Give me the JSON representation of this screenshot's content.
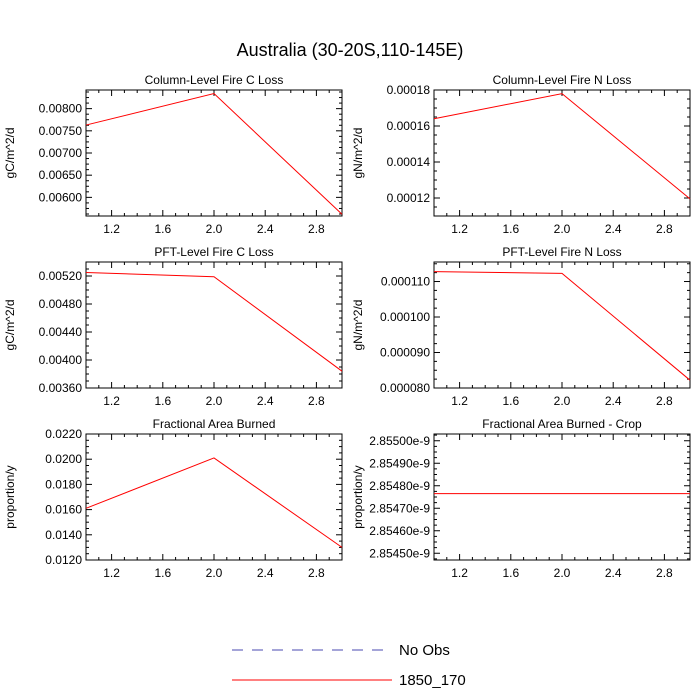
{
  "title": "Australia (30-20S,110-145E)",
  "colors": {
    "series": "#ff0000",
    "obs": "#4a4ab0",
    "axis": "#000000"
  },
  "legend": {
    "placement": "bottom-center",
    "items": [
      {
        "label": "No Obs",
        "style": "dashed",
        "color": "#4a4ab0"
      },
      {
        "label": "1850_170",
        "style": "solid",
        "color": "#ff0000"
      }
    ]
  },
  "chart_data": [
    {
      "type": "line",
      "title": "Column-Level Fire C Loss",
      "ylabel": "gC/m^2/d",
      "xlim": [
        1,
        3
      ],
      "xticks": [
        1.2,
        1.6,
        2.0,
        2.4,
        2.8
      ],
      "xtick_labels": [
        "1.2",
        "1.6",
        "2.0",
        "2.4",
        "2.8"
      ],
      "ylim": [
        0.00558,
        0.00842
      ],
      "yticks": [
        0.006,
        0.0065,
        0.007,
        0.0075,
        0.008
      ],
      "ytick_labels": [
        "0.00600",
        "0.00650",
        "0.00700",
        "0.00750",
        "0.00800"
      ],
      "x": [
        1,
        2,
        3
      ],
      "series": [
        {
          "name": "1850_170",
          "values": [
            0.00763,
            0.00834,
            0.00562
          ]
        }
      ]
    },
    {
      "type": "line",
      "title": "Column-Level Fire N Loss",
      "ylabel": "gN/m^2/d",
      "xlim": [
        1,
        3
      ],
      "xticks": [
        1.2,
        1.6,
        2.0,
        2.4,
        2.8
      ],
      "xtick_labels": [
        "1.2",
        "1.6",
        "2.0",
        "2.4",
        "2.8"
      ],
      "ylim": [
        0.00011,
        0.00018
      ],
      "yticks": [
        0.00012,
        0.00014,
        0.00016,
        0.00018
      ],
      "ytick_labels": [
        "0.00012",
        "0.00014",
        "0.00016",
        "0.00018"
      ],
      "x": [
        1,
        2,
        3
      ],
      "series": [
        {
          "name": "1850_170",
          "values": [
            0.000164,
            0.000178,
            0.0001195
          ]
        }
      ]
    },
    {
      "type": "line",
      "title": "PFT-Level Fire C Loss",
      "ylabel": "gC/m^2/d",
      "xlim": [
        1,
        3
      ],
      "xticks": [
        1.2,
        1.6,
        2.0,
        2.4,
        2.8
      ],
      "xtick_labels": [
        "1.2",
        "1.6",
        "2.0",
        "2.4",
        "2.8"
      ],
      "ylim": [
        0.0036,
        0.0054
      ],
      "yticks": [
        0.0036,
        0.004,
        0.0044,
        0.0048,
        0.0052
      ],
      "ytick_labels": [
        "0.00360",
        "0.00400",
        "0.00440",
        "0.00480",
        "0.00520"
      ],
      "x": [
        1,
        2,
        3
      ],
      "series": [
        {
          "name": "1850_170",
          "values": [
            0.00525,
            0.00519,
            0.00384
          ]
        }
      ]
    },
    {
      "type": "line",
      "title": "PFT-Level Fire N Loss",
      "ylabel": "gN/m^2/d",
      "xlim": [
        1,
        3
      ],
      "xticks": [
        1.2,
        1.6,
        2.0,
        2.4,
        2.8
      ],
      "xtick_labels": [
        "1.2",
        "1.6",
        "2.0",
        "2.4",
        "2.8"
      ],
      "ylim": [
        8e-05,
        0.0001155
      ],
      "yticks": [
        8e-05,
        9e-05,
        0.0001,
        0.00011
      ],
      "ytick_labels": [
        "0.000080",
        "0.000090",
        "0.000100",
        "0.000110"
      ],
      "x": [
        1,
        2,
        3
      ],
      "series": [
        {
          "name": "1850_170",
          "values": [
            0.0001128,
            0.0001123,
            8.22e-05
          ]
        }
      ]
    },
    {
      "type": "line",
      "title": "Fractional Area Burned",
      "ylabel": "proportion/y",
      "xlim": [
        1,
        3
      ],
      "xticks": [
        1.2,
        1.6,
        2.0,
        2.4,
        2.8
      ],
      "xtick_labels": [
        "1.2",
        "1.6",
        "2.0",
        "2.4",
        "2.8"
      ],
      "ylim": [
        0.012,
        0.022
      ],
      "yticks": [
        0.012,
        0.014,
        0.016,
        0.018,
        0.02,
        0.022
      ],
      "ytick_labels": [
        "0.0120",
        "0.0140",
        "0.0160",
        "0.0180",
        "0.0200",
        "0.0220"
      ],
      "x": [
        1,
        2,
        3
      ],
      "series": [
        {
          "name": "1850_170",
          "values": [
            0.0161,
            0.0201,
            0.013
          ]
        }
      ]
    },
    {
      "type": "line",
      "title": "Fractional Area Burned - Crop",
      "ylabel": "proportion/y",
      "xlim": [
        1,
        3
      ],
      "xticks": [
        1.2,
        1.6,
        2.0,
        2.4,
        2.8
      ],
      "xtick_labels": [
        "1.2",
        "1.6",
        "2.0",
        "2.4",
        "2.8"
      ],
      "ylim": [
        2.85447e-09,
        2.85503e-09
      ],
      "yticks": [
        2.8545e-09,
        2.8546e-09,
        2.8547e-09,
        2.8548e-09,
        2.8549e-09,
        2.855e-09
      ],
      "ytick_labels": [
        "2.85450e-9",
        "2.85460e-9",
        "2.85470e-9",
        "2.85480e-9",
        "2.85490e-9",
        "2.85500e-9"
      ],
      "x": [
        1,
        2,
        3
      ],
      "series": [
        {
          "name": "1850_170",
          "values": [
            2.854765e-09,
            2.854765e-09,
            2.854765e-09
          ]
        }
      ]
    }
  ]
}
